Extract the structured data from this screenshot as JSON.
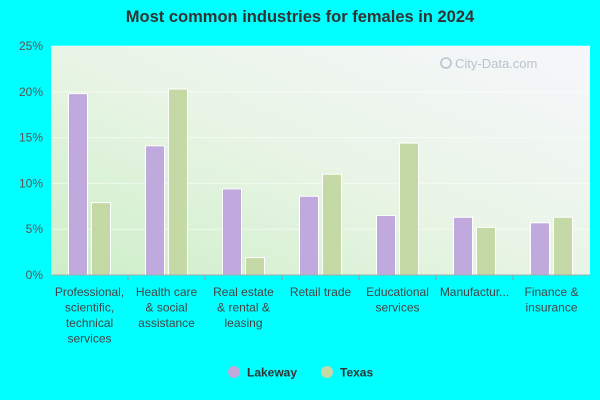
{
  "chart_data": {
    "type": "bar",
    "title": "Most common industries for females in 2024",
    "categories": [
      [
        "Professional,",
        "scientific,",
        "technical",
        "services"
      ],
      [
        "Health care",
        "& social",
        "assistance"
      ],
      [
        "Real estate",
        "& rental &",
        "leasing"
      ],
      [
        "Retail trade"
      ],
      [
        "Educational",
        "services"
      ],
      [
        "Manufactur..."
      ],
      [
        "Finance &",
        "insurance"
      ]
    ],
    "series": [
      {
        "name": "Lakeway",
        "color": "#c0a9dc",
        "values": [
          19.8,
          14.1,
          9.4,
          8.6,
          6.5,
          6.3,
          5.7
        ]
      },
      {
        "name": "Texas",
        "color": "#c4d9a6",
        "values": [
          7.9,
          20.3,
          1.9,
          11.0,
          14.4,
          5.2,
          6.3
        ]
      }
    ],
    "yticks": [
      "0%",
      "5%",
      "10%",
      "15%",
      "20%",
      "25%"
    ],
    "ylim": [
      0,
      25
    ],
    "legend_position": "bottom-center",
    "watermark": "City-Data.com"
  }
}
